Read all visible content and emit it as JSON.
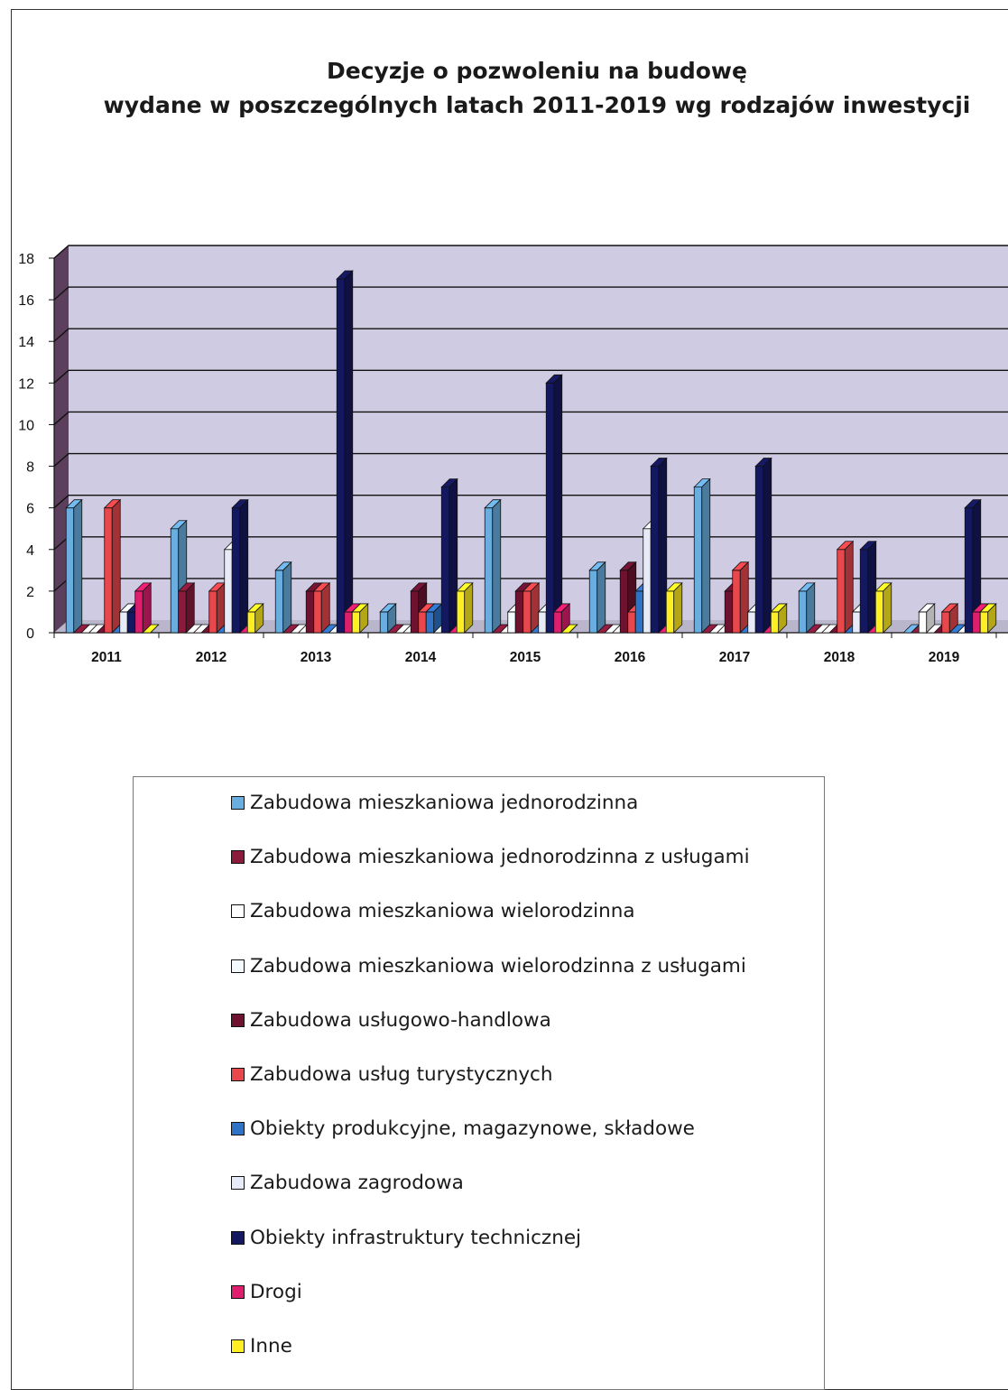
{
  "chart_data": {
    "type": "bar",
    "title_lines": [
      "Decyzje o pozwoleniu na budowę",
      "wydane w poszczególnych latach 2011-2019 wg rodzajów inwestycji"
    ],
    "categories": [
      "2011",
      "2012",
      "2013",
      "2014",
      "2015",
      "2016",
      "2017",
      "2018",
      "2019"
    ],
    "ylim": [
      0,
      18
    ],
    "yticks": [
      "0",
      "2",
      "4",
      "6",
      "8",
      "10",
      "12",
      "14",
      "16",
      "18"
    ],
    "grid": true,
    "legend_position": "bottom",
    "series": [
      {
        "name": "Zabudowa mieszkaniowa jednorodzinna",
        "color": "#6aaee0",
        "values": [
          6,
          5,
          3,
          1,
          6,
          3,
          7,
          2,
          0
        ]
      },
      {
        "name": "Zabudowa mieszkaniowa jednorodzinna z usługami",
        "color": "#8c1a3c",
        "values": [
          0,
          2,
          0,
          0,
          0,
          0,
          0,
          0,
          0
        ]
      },
      {
        "name": "Zabudowa mieszkaniowa wielorodzinna",
        "color": "#ffffff",
        "values": [
          0,
          0,
          0,
          0,
          0,
          0,
          0,
          0,
          1
        ]
      },
      {
        "name": "Zabudowa mieszkaniowa wielorodzinna z usługami",
        "color": "#f4fbff",
        "values": [
          0,
          0,
          0,
          0,
          1,
          0,
          0,
          0,
          0
        ]
      },
      {
        "name": "Zabudowa usługowo-handlowa",
        "color": "#6e1230",
        "values": [
          0,
          0,
          2,
          2,
          2,
          3,
          2,
          0,
          0
        ]
      },
      {
        "name": "Zabudowa usług turystycznych",
        "color": "#e8474b",
        "values": [
          6,
          2,
          2,
          1,
          2,
          1,
          3,
          4,
          1
        ]
      },
      {
        "name": "Obiekty produkcyjne, magazynowe, składowe",
        "color": "#2f73c8",
        "values": [
          0,
          0,
          0,
          1,
          0,
          2,
          0,
          0,
          0
        ]
      },
      {
        "name": "Zabudowa zagrodowa",
        "color": "#e6ebf7",
        "values": [
          1,
          4,
          0,
          0,
          1,
          5,
          1,
          1,
          0
        ]
      },
      {
        "name": "Obiekty infrastruktury technicznej",
        "color": "#14185e",
        "values": [
          1,
          6,
          17,
          7,
          12,
          8,
          8,
          4,
          6
        ]
      },
      {
        "name": "Drogi",
        "color": "#e01e6e",
        "values": [
          2,
          0,
          1,
          0,
          1,
          0,
          0,
          0,
          1
        ]
      },
      {
        "name": "Inne",
        "color": "#ffee22",
        "values": [
          0,
          1,
          1,
          2,
          0,
          2,
          1,
          2,
          1
        ]
      }
    ]
  }
}
